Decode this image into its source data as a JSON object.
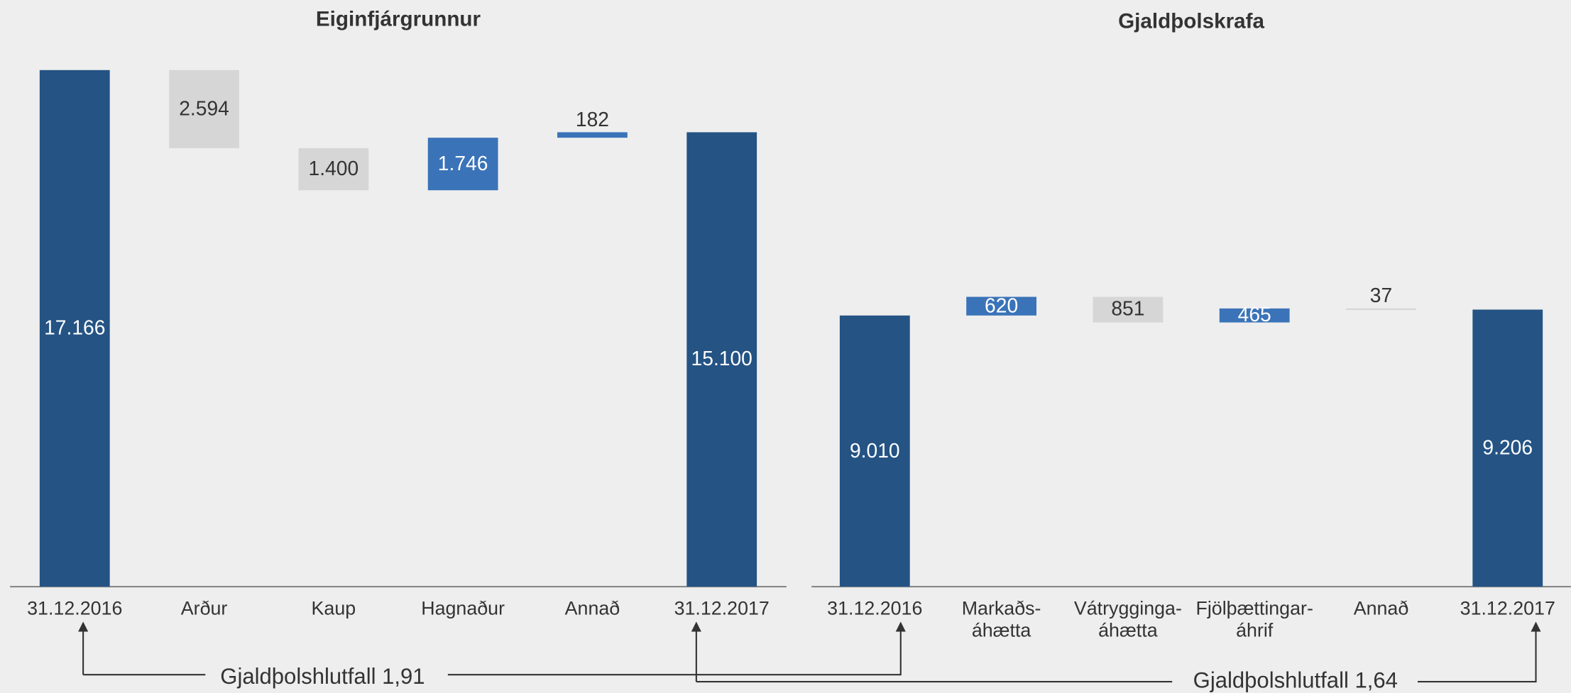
{
  "chart_data": [
    {
      "type": "waterfall",
      "title": "Eiginfjárgrunnur",
      "categories": [
        "31.12.2016",
        "Arður",
        "Kaup",
        "Hagnaður",
        "Annað",
        "31.12.2017"
      ],
      "values": [
        17166,
        -2594,
        -1400,
        1746,
        182,
        15100
      ],
      "value_labels": [
        "17.166",
        "2.594",
        "1.400",
        "1.746",
        "182",
        "15.100"
      ],
      "colors": [
        "#245384",
        "#d6d6d6",
        "#d6d6d6",
        "#3a73b8",
        "#3a73b8",
        "#245384"
      ]
    },
    {
      "type": "waterfall",
      "title": "Gjaldþolskrafa",
      "categories": [
        "31.12.2016",
        "Markaðs-\náhætta",
        "Vátrygginga-\náhætta",
        "Fjölþættingar-\náhrif",
        "Annað",
        "31.12.2017"
      ],
      "values": [
        9010,
        620,
        -851,
        465,
        -37,
        9206
      ],
      "value_labels": [
        "9.010",
        "620",
        "851",
        "465",
        "37",
        "9.206"
      ],
      "colors": [
        "#245384",
        "#3a73b8",
        "#d6d6d6",
        "#3a73b8",
        "#d6d6d6",
        "#245384"
      ]
    }
  ],
  "annotations": [
    "Gjaldþolshlutfall 1,91",
    "Gjaldþolshlutfall 1,64"
  ]
}
